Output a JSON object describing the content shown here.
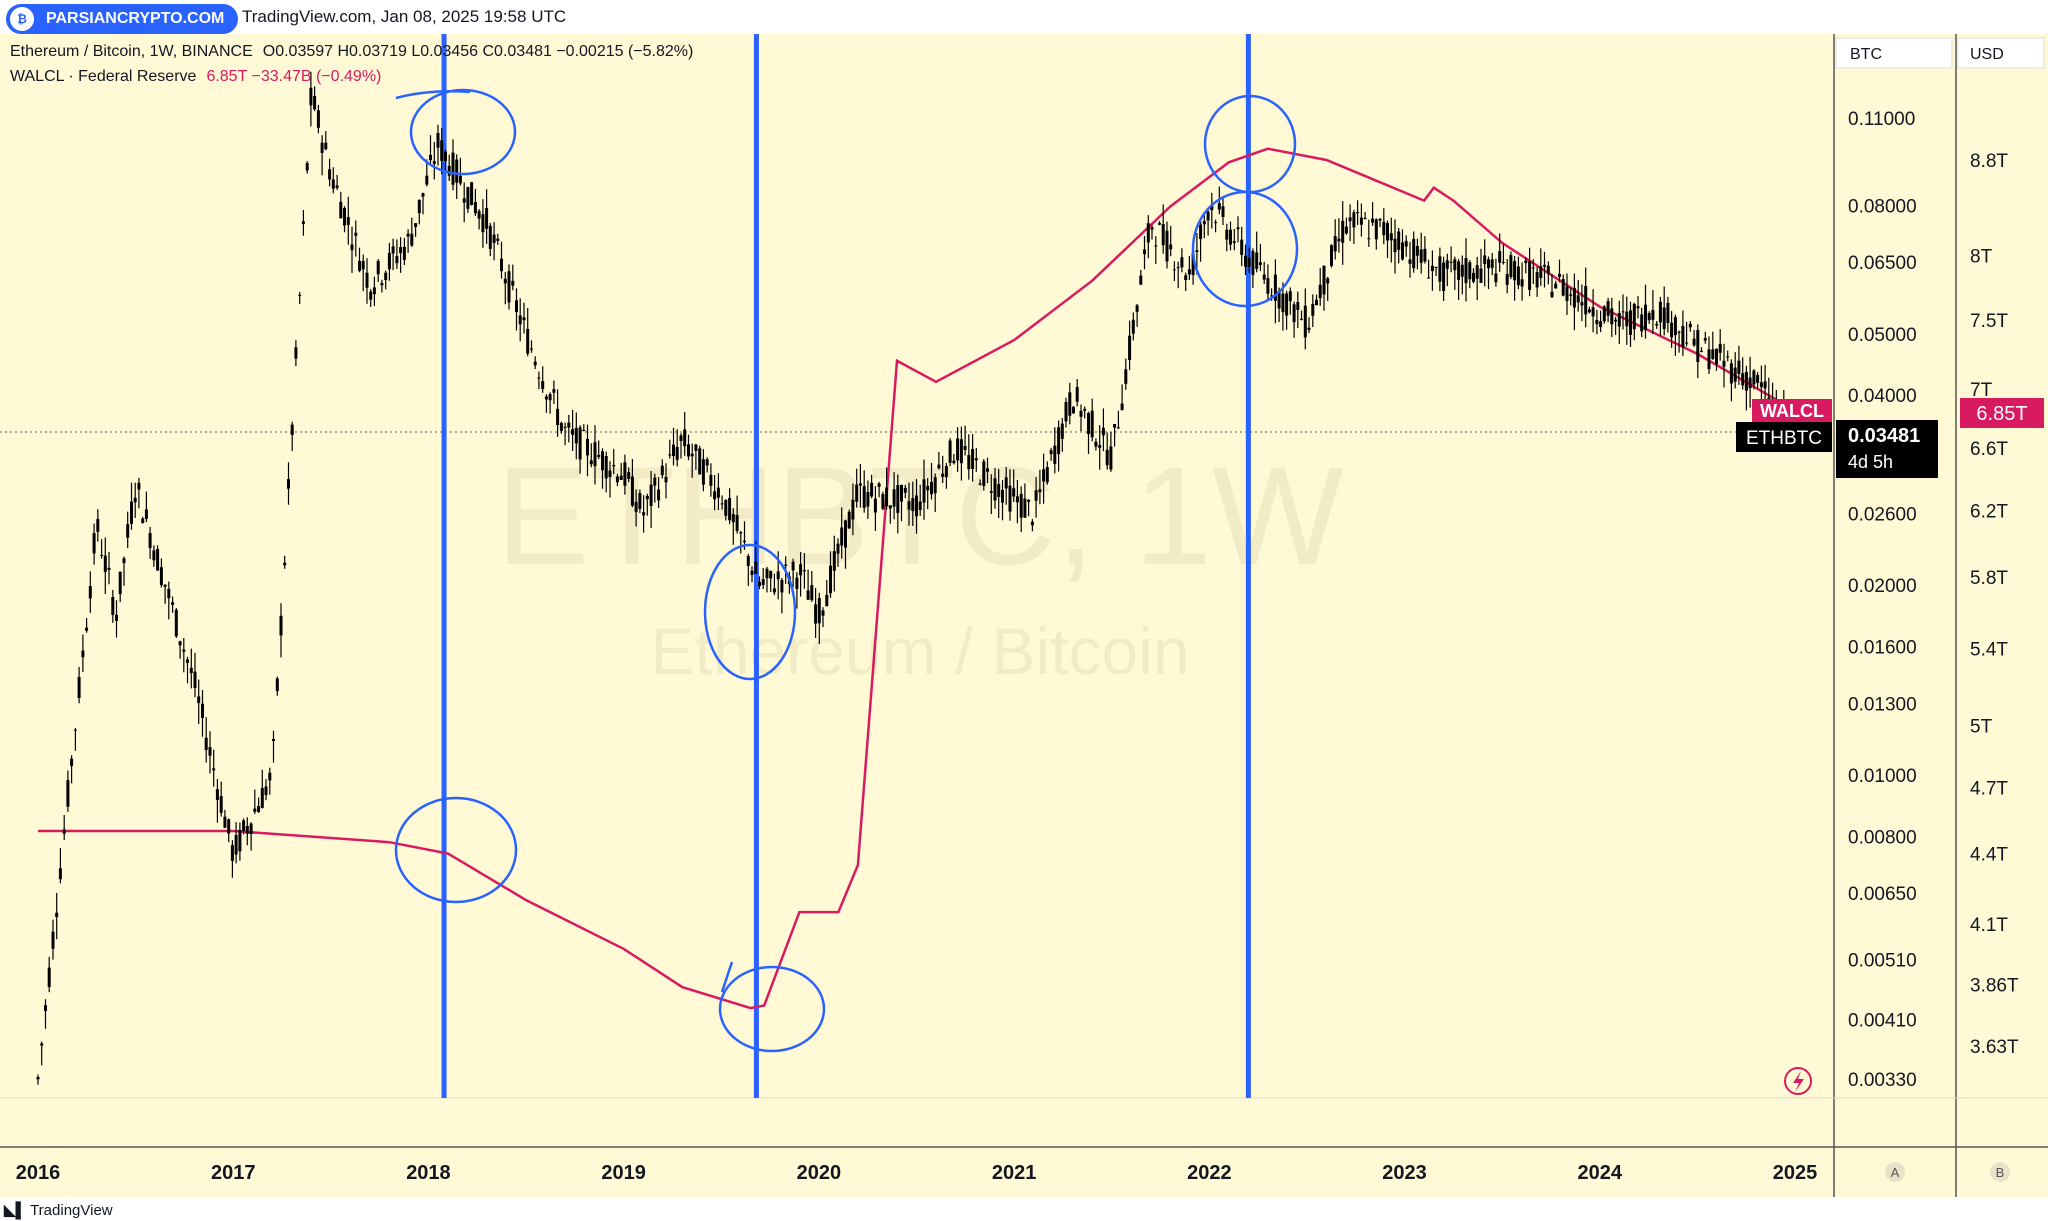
{
  "header": {
    "source_text": "TradingView.com, Jan 08, 2025 19:58 UTC",
    "watermark": "PARSIANCRYPTO.COM"
  },
  "legend": {
    "main_symbol": "Ethereum / Bitcoin, 1W, BINANCE",
    "main_values": "O0.03597 H0.03719 L0.03456 C0.03481 −0.00215 (−5.82%)",
    "indicator_symbol": "WALCL · Federal Reserve",
    "indicator_values": "6.85T −33.47B (−0.49%)"
  },
  "scale_headers": {
    "left": "BTC",
    "right": "USD"
  },
  "background_watermark": {
    "line1": "ETHBTC, 1W",
    "line2": "Ethereum / Bitcoin"
  },
  "price_tags": {
    "walcl_label": "WALCL",
    "walcl_value": "6.85T",
    "ethbtc_label": "ETHBTC",
    "ethbtc_value": "0.03481",
    "countdown": "4d 5h"
  },
  "bottom_buttons": {
    "a": "A",
    "b": "B"
  },
  "footer": {
    "brand": "TradingView"
  },
  "colors": {
    "background": "#fff9d6",
    "candles": "#000000",
    "walcl_line": "#d81b60",
    "annotation": "#2962ff"
  },
  "chart_data": {
    "type": "line",
    "title": "Ethereum / Bitcoin, 1W, BINANCE",
    "x_tick_labels": [
      "2016",
      "2017",
      "2018",
      "2019",
      "2020",
      "2021",
      "2022",
      "2023",
      "2024",
      "2025"
    ],
    "y_left": {
      "label": "BTC",
      "scale": "log",
      "tick_labels": [
        "0.11000",
        "0.08000",
        "0.06500",
        "0.05000",
        "0.04000",
        "0.02600",
        "0.02000",
        "0.01600",
        "0.01300",
        "0.01000",
        "0.00800",
        "0.00650",
        "0.00510",
        "0.00410",
        "0.00330"
      ]
    },
    "y_right": {
      "label": "USD",
      "tick_labels": [
        "8.8T",
        "8T",
        "7.5T",
        "7T",
        "6.6T",
        "6.2T",
        "5.8T",
        "5.4T",
        "5T",
        "4.7T",
        "4.4T",
        "4.1T",
        "3.86T",
        "3.63T"
      ]
    },
    "series": [
      {
        "name": "ETHBTC",
        "x": [
          2016.0,
          2016.3,
          2016.4,
          2016.5,
          2016.8,
          2017.0,
          2017.2,
          2017.4,
          2017.5,
          2017.7,
          2017.9,
          2018.05,
          2018.3,
          2018.5,
          2018.7,
          2019.0,
          2019.1,
          2019.3,
          2019.5,
          2019.7,
          2019.9,
          2020.0,
          2020.2,
          2020.5,
          2020.7,
          2020.9,
          2021.1,
          2021.3,
          2021.5,
          2021.7,
          2021.9,
          2022.0,
          2022.2,
          2022.5,
          2022.7,
          2022.9,
          2023.2,
          2023.5,
          2023.8,
          2024.1,
          2024.3,
          2024.5,
          2024.8,
          2025.0
        ],
        "values": [
          0.0033,
          0.025,
          0.018,
          0.029,
          0.014,
          0.0075,
          0.01,
          0.12,
          0.09,
          0.06,
          0.07,
          0.1,
          0.075,
          0.05,
          0.035,
          0.03,
          0.026,
          0.034,
          0.028,
          0.02,
          0.021,
          0.018,
          0.028,
          0.027,
          0.033,
          0.029,
          0.026,
          0.04,
          0.032,
          0.075,
          0.062,
          0.081,
          0.066,
          0.052,
          0.075,
          0.073,
          0.062,
          0.064,
          0.06,
          0.052,
          0.055,
          0.048,
          0.042,
          0.035
        ]
      },
      {
        "name": "WALCL",
        "x": [
          2016.0,
          2017.0,
          2017.8,
          2018.1,
          2018.5,
          2019.0,
          2019.3,
          2019.65,
          2019.72,
          2019.9,
          2020.1,
          2020.2,
          2020.4,
          2020.6,
          2021.0,
          2021.4,
          2021.8,
          2022.1,
          2022.3,
          2022.6,
          2023.1,
          2023.15,
          2023.25,
          2023.5,
          2024.0,
          2024.5,
          2025.0
        ],
        "values": [
          4.5,
          4.5,
          4.45,
          4.4,
          4.2,
          4.0,
          3.85,
          3.77,
          3.78,
          4.15,
          4.15,
          4.35,
          7.2,
          7.05,
          7.35,
          7.8,
          8.4,
          8.78,
          8.9,
          8.8,
          8.45,
          8.56,
          8.45,
          8.1,
          7.6,
          7.25,
          6.85
        ]
      }
    ],
    "vertical_markers_x": [
      2018.08,
      2019.68,
      2022.2
    ],
    "legend_position": "top-left"
  }
}
